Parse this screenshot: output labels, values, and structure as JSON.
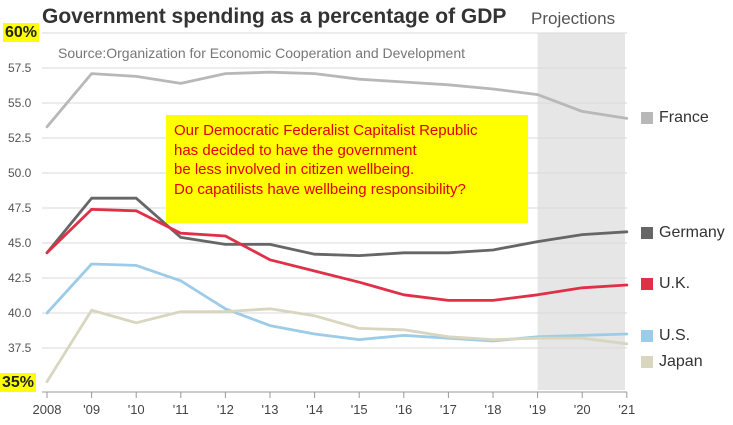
{
  "title": "Government spending as a percentage of GDP",
  "subtitle": "Source:Organization for Economic Cooperation and Development",
  "projections_label": "Projections",
  "annotations": {
    "top_left": "60%",
    "bottom_left": "35%"
  },
  "callout": {
    "lines": [
      "Our Democratic Federalist Capitalist Republic",
      "has decided to have the government",
      "be less involved in citizen wellbeing.",
      "Do capatilists have wellbeing responsibility?"
    ]
  },
  "colors": {
    "callout_background": "#ffff00",
    "callout_text": "#e00000",
    "projection_shade": "#e6e6e6"
  },
  "chart_data": {
    "type": "line",
    "x": [
      "2008",
      "'09",
      "'10",
      "'11",
      "'12",
      "'13",
      "'14",
      "'15",
      "'16",
      "'17",
      "'18",
      "'19",
      "'20",
      "'21"
    ],
    "y_ticks": [
      "57.5",
      "55.0",
      "52.5",
      "50.0",
      "47.5",
      "45.0",
      "42.5",
      "40.0",
      "37.5"
    ],
    "ylim": [
      35,
      60
    ],
    "projection_start": "'19",
    "grid": true,
    "legend_placement": "right",
    "series": [
      {
        "name": "France",
        "color": "#b8b8b8",
        "values": [
          53.3,
          57.1,
          56.9,
          56.4,
          57.1,
          57.2,
          57.1,
          56.7,
          56.5,
          56.3,
          56.0,
          55.6,
          54.4,
          53.9
        ]
      },
      {
        "name": "Germany",
        "color": "#666666",
        "values": [
          44.3,
          48.2,
          48.2,
          45.4,
          44.9,
          44.9,
          44.2,
          44.1,
          44.3,
          44.3,
          44.5,
          45.1,
          45.6,
          45.8
        ]
      },
      {
        "name": "U.K.",
        "color": "#e03048",
        "values": [
          44.3,
          47.4,
          47.3,
          45.7,
          45.5,
          43.8,
          43.0,
          42.2,
          41.3,
          40.9,
          40.9,
          41.3,
          41.8,
          42.0
        ]
      },
      {
        "name": "U.S.",
        "color": "#9ccce8",
        "values": [
          40.0,
          43.5,
          43.4,
          42.3,
          40.3,
          39.1,
          38.5,
          38.1,
          38.4,
          38.2,
          38.0,
          38.3,
          38.4,
          38.5
        ]
      },
      {
        "name": "Japan",
        "color": "#d8d6be",
        "values": [
          35.1,
          40.2,
          39.3,
          40.1,
          40.1,
          40.3,
          39.8,
          38.9,
          38.8,
          38.3,
          38.1,
          38.2,
          38.2,
          37.8
        ]
      }
    ]
  }
}
